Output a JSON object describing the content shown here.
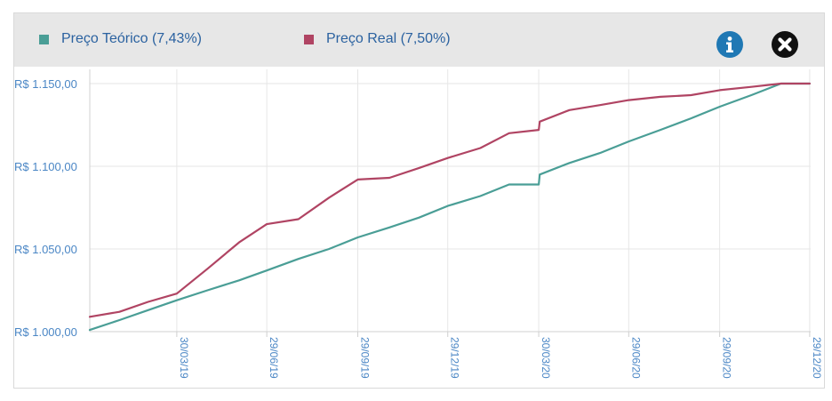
{
  "legend": {
    "items": [
      {
        "label": "Preço Teórico (7,43%)",
        "color": "#4a9e96"
      },
      {
        "label": "Preço Real (7,50%)",
        "color": "#b04463"
      }
    ]
  },
  "icons": {
    "info": "info-icon",
    "close": "close-icon"
  },
  "chart_data": {
    "type": "line",
    "title": "",
    "xlabel": "",
    "ylabel": "",
    "grid": true,
    "legend_position": "top-left",
    "x_ticks": [
      "30/03/19",
      "29/06/19",
      "29/09/19",
      "29/12/19",
      "30/03/20",
      "29/06/20",
      "29/09/20",
      "29/12/20"
    ],
    "y_ticks": [
      "R$ 1.000,00",
      "R$ 1.050,00",
      "R$ 1.100,00",
      "R$ 1.150,00"
    ],
    "y_tick_values": [
      1000,
      1050,
      1100,
      1150
    ],
    "ylim": [
      1000,
      1150
    ],
    "x": [
      "2019-01-01",
      "2019-01-31",
      "2019-03-01",
      "2019-03-30",
      "2019-04-30",
      "2019-06-01",
      "2019-06-29",
      "2019-07-31",
      "2019-08-31",
      "2019-09-29",
      "2019-10-31",
      "2019-11-30",
      "2019-12-29",
      "2020-01-31",
      "2020-02-29",
      "2020-03-30",
      "2020-03-31",
      "2020-04-30",
      "2020-05-31",
      "2020-06-29",
      "2020-07-31",
      "2020-08-31",
      "2020-09-29",
      "2020-10-31",
      "2020-11-30",
      "2020-12-29"
    ],
    "series": [
      {
        "name": "Preço Teórico (7,43%)",
        "color": "#4a9e96",
        "values": [
          1001,
          1007,
          1013,
          1019,
          1025,
          1031,
          1037,
          1044,
          1050,
          1057,
          1063,
          1069,
          1076,
          1082,
          1089,
          1089,
          1095,
          1102,
          1108,
          1115,
          1122,
          1129,
          1136,
          1143,
          1150,
          1150
        ]
      },
      {
        "name": "Preço Real (7,50%)",
        "color": "#b04463",
        "values": [
          1009,
          1012,
          1018,
          1023,
          1038,
          1054,
          1065,
          1068,
          1081,
          1092,
          1093,
          1099,
          1105,
          1111,
          1120,
          1122,
          1127,
          1134,
          1137,
          1140,
          1142,
          1143,
          1146,
          1148,
          1150,
          1150
        ]
      }
    ]
  }
}
